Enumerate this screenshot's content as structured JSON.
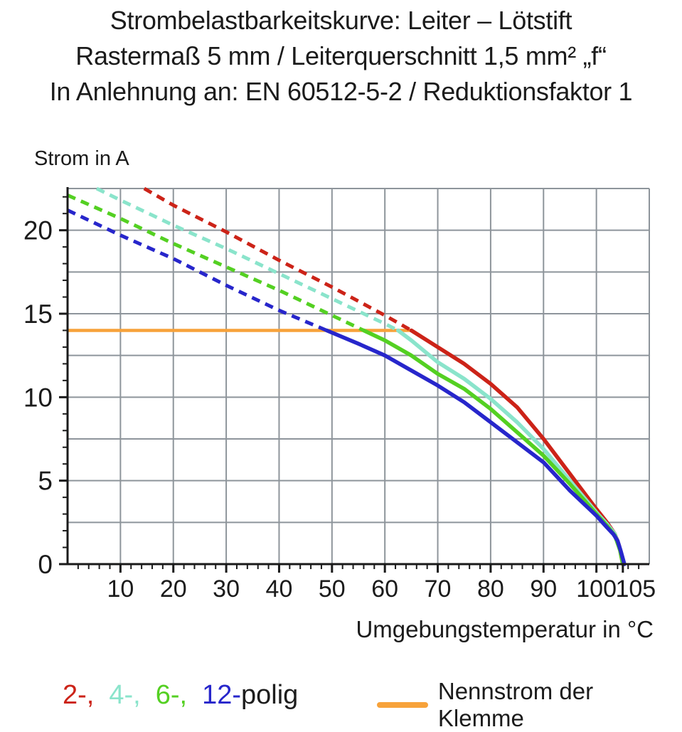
{
  "title": {
    "line1": "Strombelastbarkeitskurve: Leiter – Lötstift",
    "line2": "Rastermaß 5 mm / Leiterquerschnitt 1,5 mm² „f“",
    "line3": "In Anlehnung an: EN 60512-5-2 / Reduktionsfaktor 1"
  },
  "chart_data": {
    "type": "line",
    "ylabel": "Strom in A",
    "xlabel": "Umgebungstemperatur in °C",
    "xlim": [
      0,
      110
    ],
    "ylim": [
      0,
      22.5
    ],
    "x_major_grid_step": 10,
    "y_major_grid_step": 2.5,
    "x_minor_tick_step": 2,
    "y_minor_tick_step": 1,
    "grid_color": "#8e959b",
    "axis_color": "#1a1a1a",
    "x_tick_labels": [
      {
        "t": 10,
        "label": "10"
      },
      {
        "t": 20,
        "label": "20"
      },
      {
        "t": 30,
        "label": "30"
      },
      {
        "t": 40,
        "label": "40"
      },
      {
        "t": 50,
        "label": "50"
      },
      {
        "t": 60,
        "label": "60"
      },
      {
        "t": 70,
        "label": "70"
      },
      {
        "t": 80,
        "label": "80"
      },
      {
        "t": 90,
        "label": "90"
      },
      {
        "t": 100,
        "label": "100"
      },
      {
        "t": 105,
        "label": "105",
        "label_shift": 18
      }
    ],
    "y_tick_labels": [
      {
        "a": 0,
        "label": "0"
      },
      {
        "a": 5,
        "label": "5"
      },
      {
        "a": 10,
        "label": "10"
      },
      {
        "a": 15,
        "label": "15"
      },
      {
        "a": 20,
        "label": "20"
      }
    ],
    "series": [
      {
        "name": "2-polig",
        "color": "#cc2318",
        "dashed": [
          [
            14.5,
            22.5
          ],
          [
            20,
            21.5
          ],
          [
            30,
            19.9
          ],
          [
            40,
            18.2
          ],
          [
            50,
            16.6
          ],
          [
            60,
            14.9
          ],
          [
            65,
            14
          ]
        ],
        "solid": [
          [
            65,
            14
          ],
          [
            70,
            13
          ],
          [
            75,
            12
          ],
          [
            80,
            10.8
          ],
          [
            85,
            9.4
          ],
          [
            90,
            7.5
          ],
          [
            95,
            5.4
          ],
          [
            100,
            3.3
          ],
          [
            102,
            2.5
          ],
          [
            103.5,
            1.8
          ],
          [
            104.3,
            1.1
          ],
          [
            105,
            0
          ]
        ]
      },
      {
        "name": "4-polig",
        "color": "#8ae4cb",
        "dashed": [
          [
            5.5,
            22.5
          ],
          [
            10,
            21.8
          ],
          [
            20,
            20.3
          ],
          [
            30,
            18.9
          ],
          [
            40,
            17.4
          ],
          [
            50,
            15.9
          ],
          [
            60,
            14.4
          ],
          [
            62.5,
            14
          ]
        ],
        "solid": [
          [
            62.5,
            14
          ],
          [
            65,
            13.4
          ],
          [
            70,
            12.1
          ],
          [
            75,
            11.1
          ],
          [
            80,
            9.9
          ],
          [
            85,
            8.5
          ],
          [
            90,
            6.9
          ],
          [
            95,
            5
          ],
          [
            100,
            3.1
          ],
          [
            102,
            2.4
          ],
          [
            103.5,
            1.8
          ],
          [
            104.4,
            0.9
          ],
          [
            105.1,
            0
          ]
        ]
      },
      {
        "name": "6-polig",
        "color": "#54d022",
        "dashed": [
          [
            0,
            22.1
          ],
          [
            10,
            20.7
          ],
          [
            20,
            19.2
          ],
          [
            30,
            17.8
          ],
          [
            40,
            16.4
          ],
          [
            50,
            14.9
          ],
          [
            56,
            14
          ]
        ],
        "solid": [
          [
            56,
            14
          ],
          [
            60,
            13.4
          ],
          [
            65,
            12.5
          ],
          [
            70,
            11.4
          ],
          [
            75,
            10.5
          ],
          [
            80,
            9.3
          ],
          [
            85,
            7.9
          ],
          [
            90,
            6.5
          ],
          [
            95,
            4.8
          ],
          [
            100,
            3
          ],
          [
            102,
            2.3
          ],
          [
            103.5,
            1.7
          ],
          [
            104.5,
            0.8
          ],
          [
            105,
            0
          ]
        ]
      },
      {
        "name": "12-polig",
        "color": "#2726cb",
        "dashed": [
          [
            0,
            21.2
          ],
          [
            10,
            19.7
          ],
          [
            20,
            18.3
          ],
          [
            30,
            16.7
          ],
          [
            40,
            15.2
          ],
          [
            49,
            14
          ]
        ],
        "solid": [
          [
            49,
            14
          ],
          [
            55,
            13.2
          ],
          [
            60,
            12.5
          ],
          [
            65,
            11.6
          ],
          [
            70,
            10.7
          ],
          [
            75,
            9.7
          ],
          [
            80,
            8.5
          ],
          [
            85,
            7.3
          ],
          [
            90,
            6.1
          ],
          [
            95,
            4.4
          ],
          [
            100,
            2.9
          ],
          [
            102,
            2.2
          ],
          [
            103.2,
            1.8
          ],
          [
            104,
            1.4
          ],
          [
            104.6,
            0.8
          ],
          [
            105.3,
            0
          ]
        ]
      }
    ],
    "reference_line": {
      "label": "Nennstrom der Klemme",
      "value": 14,
      "x_start": 0,
      "x_end": 65,
      "color": "#f7a23a"
    }
  },
  "legend": {
    "pole_items": [
      {
        "label": "2-,",
        "color": "#cc2318"
      },
      {
        "label": "4-,",
        "color": "#8ae4cb"
      },
      {
        "label": "6-,",
        "color": "#54d022"
      },
      {
        "label": "12-",
        "color": "#2726cb"
      }
    ],
    "suffix": "polig",
    "nennstrom_label": "Nennstrom der Klemme"
  }
}
